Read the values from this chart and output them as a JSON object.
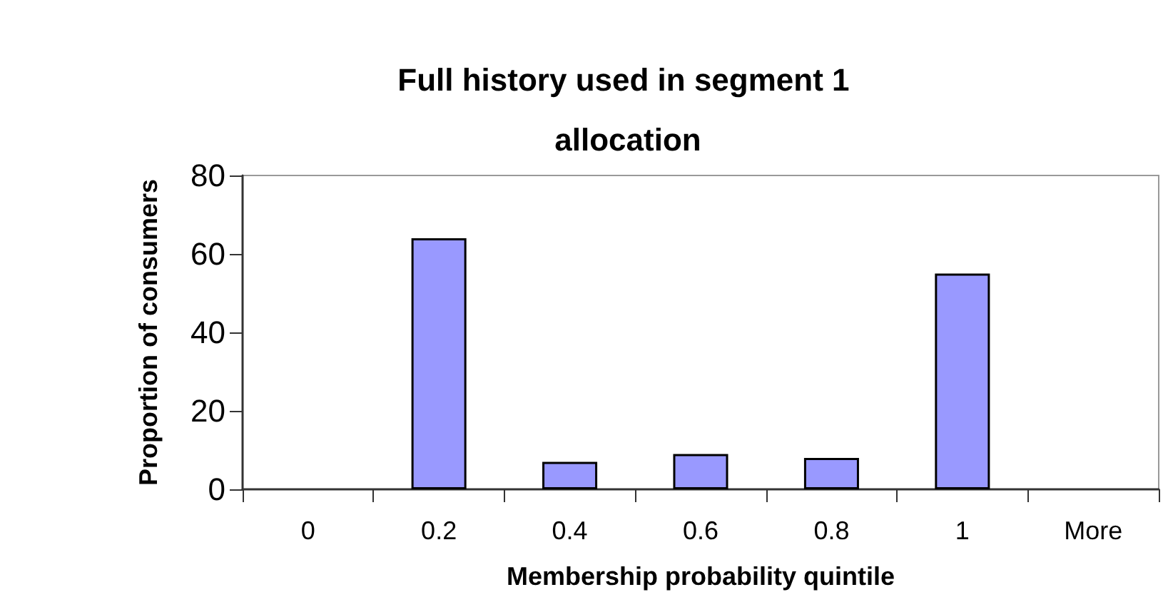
{
  "chart_data": {
    "type": "bar",
    "title": "Full history used in segment 1 allocation",
    "xlabel": "Membership probability quintile",
    "ylabel": "Proportion of consumers",
    "categories": [
      "0",
      "0.2",
      "0.4",
      "0.6",
      "0.8",
      "1",
      "More"
    ],
    "values": [
      0,
      64,
      7,
      9,
      8,
      55,
      0
    ],
    "color": "#9999ff",
    "ylim": [
      0,
      80
    ],
    "yticks": [
      0,
      20,
      40,
      60,
      80
    ],
    "grid": false
  }
}
